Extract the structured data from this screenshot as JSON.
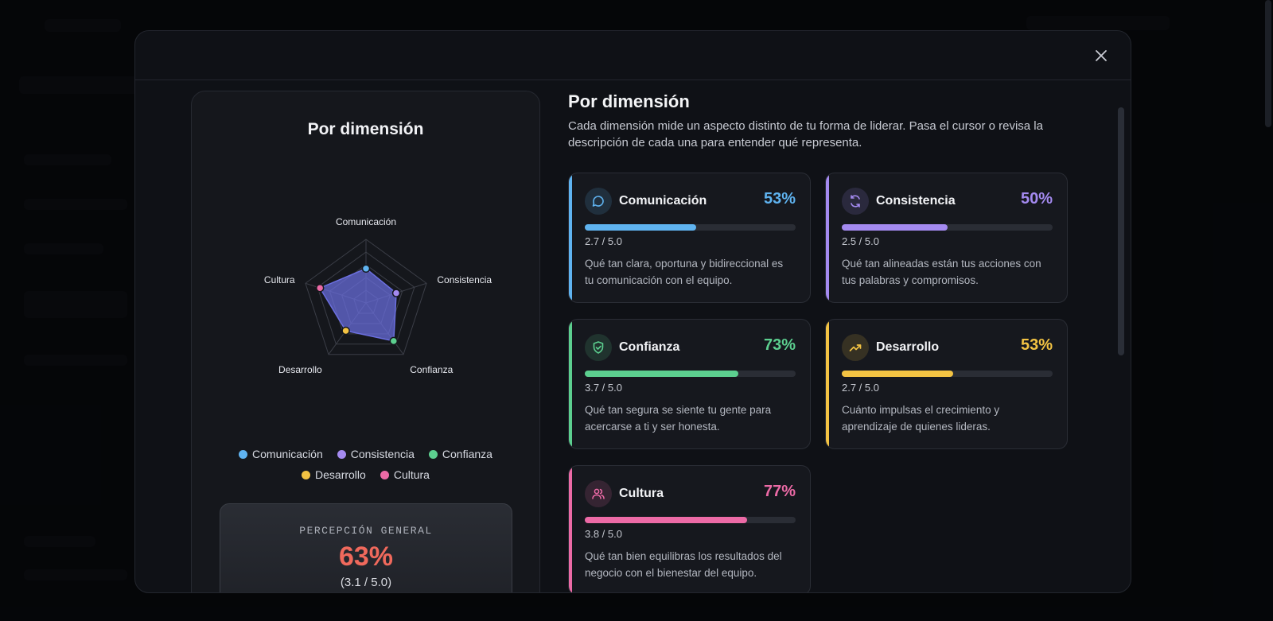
{
  "left": {
    "title": "Por dimensión",
    "perception_label": "PERCEPCIÓN GENERAL",
    "perception_value": "63%",
    "perception_sub": "(3.1 / 5.0)"
  },
  "right": {
    "title": "Por dimensión",
    "description": "Cada dimensión mide un aspecto distinto de tu forma de liderar. Pasa el cursor o revisa la descripción de cada una para entender qué representa."
  },
  "chart_data": {
    "type": "radar",
    "title": "Por dimensión",
    "scale_max": 5.0,
    "axes": [
      "Comunicación",
      "Consistencia",
      "Confianza",
      "Desarrollo",
      "Cultura"
    ],
    "values": [
      2.7,
      2.5,
      3.7,
      2.7,
      3.8
    ],
    "colors": [
      "#5fb3f0",
      "#a48af0",
      "#5ccf8f",
      "#f3c343",
      "#ec6aa6"
    ],
    "fill_color": "#6b6fe0",
    "legend": [
      "Comunicación",
      "Consistencia",
      "Confianza",
      "Desarrollo",
      "Cultura"
    ],
    "legend_position": "bottom"
  },
  "dimensions": [
    {
      "name": "Comunicación",
      "pct": "53%",
      "fraction": 0.53,
      "score": "2.7 / 5.0",
      "color": "#5fb3f0",
      "icon": "message-circle-icon",
      "desc": "Qué tan clara, oportuna y bidireccional es tu comunicación con el equipo."
    },
    {
      "name": "Consistencia",
      "pct": "50%",
      "fraction": 0.5,
      "score": "2.5 / 5.0",
      "color": "#a48af0",
      "icon": "refresh-icon",
      "desc": "Qué tan alineadas están tus acciones con tus palabras y compromisos."
    },
    {
      "name": "Confianza",
      "pct": "73%",
      "fraction": 0.73,
      "score": "3.7 / 5.0",
      "color": "#5ccf8f",
      "icon": "shield-check-icon",
      "desc": "Qué tan segura se siente tu gente para acercarse a ti y ser honesta."
    },
    {
      "name": "Desarrollo",
      "pct": "53%",
      "fraction": 0.53,
      "score": "2.7 / 5.0",
      "color": "#f3c343",
      "icon": "trending-up-icon",
      "desc": "Cuánto impulsas el crecimiento y aprendizaje de quienes lideras."
    },
    {
      "name": "Cultura",
      "pct": "77%",
      "fraction": 0.77,
      "score": "3.8 / 5.0",
      "color": "#ec6aa6",
      "icon": "users-icon",
      "desc": "Qué tan bien equilibras los resultados del negocio con el bienestar del equipo."
    }
  ]
}
